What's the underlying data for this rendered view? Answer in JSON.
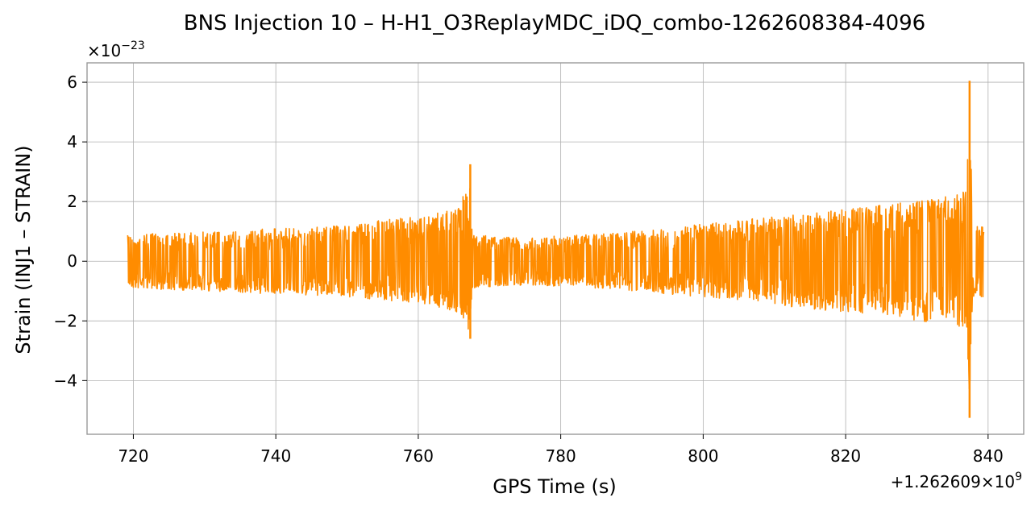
{
  "chart_data": {
    "type": "line",
    "title": "BNS Injection 10 – H-H1_O3ReplayMDC_iDQ_combo-1262608384-4096",
    "xlabel": "GPS Time (s)",
    "ylabel": "Strain (INJ1 – STRAIN)",
    "x_offset_label": "+1.262609×10^9",
    "y_scale_label": "×10^−23",
    "xlim": [
      713.5,
      845
    ],
    "ylim": [
      -5.8,
      6.65
    ],
    "x_ticks": [
      720,
      740,
      760,
      780,
      800,
      820,
      840
    ],
    "y_ticks": [
      -4,
      -2,
      0,
      2,
      4,
      6
    ],
    "x_tick_labels": [
      "720",
      "740",
      "760",
      "780",
      "800",
      "820",
      "840"
    ],
    "y_tick_labels": [
      "−4",
      "−2",
      "0",
      "2",
      "4",
      "6"
    ],
    "grid": true,
    "series": [
      {
        "color": "#ff8c00",
        "x_range": [
          719.2,
          839.4
        ],
        "envelope": [
          {
            "x": 719.2,
            "lo": -0.9,
            "hi": 0.9
          },
          {
            "x": 730,
            "lo": -1.0,
            "hi": 1.0
          },
          {
            "x": 740,
            "lo": -1.1,
            "hi": 1.1
          },
          {
            "x": 750,
            "lo": -1.2,
            "hi": 1.2
          },
          {
            "x": 755,
            "lo": -1.3,
            "hi": 1.4
          },
          {
            "x": 760,
            "lo": -1.4,
            "hi": 1.5
          },
          {
            "x": 764,
            "lo": -1.6,
            "hi": 1.7
          },
          {
            "x": 766,
            "lo": -1.8,
            "hi": 1.9
          },
          {
            "x": 767.2,
            "lo": -2.5,
            "hi": 3.2
          },
          {
            "x": 767.6,
            "lo": -0.9,
            "hi": 0.9
          },
          {
            "x": 775,
            "lo": -0.8,
            "hi": 0.8
          },
          {
            "x": 785,
            "lo": -0.9,
            "hi": 0.9
          },
          {
            "x": 795,
            "lo": -1.1,
            "hi": 1.1
          },
          {
            "x": 805,
            "lo": -1.3,
            "hi": 1.4
          },
          {
            "x": 815,
            "lo": -1.6,
            "hi": 1.6
          },
          {
            "x": 825,
            "lo": -1.8,
            "hi": 1.9
          },
          {
            "x": 830,
            "lo": -2.0,
            "hi": 2.0
          },
          {
            "x": 835,
            "lo": -2.1,
            "hi": 2.2
          },
          {
            "x": 837.0,
            "lo": -2.3,
            "hi": 2.4
          },
          {
            "x": 837.4,
            "lo": -5.25,
            "hi": 6.05
          },
          {
            "x": 837.8,
            "lo": -1.2,
            "hi": 1.2
          },
          {
            "x": 839.4,
            "lo": -1.2,
            "hi": 1.2
          }
        ],
        "spikes": [
          {
            "x": 767.3,
            "lo": -2.6,
            "hi": 3.25
          },
          {
            "x": 837.4,
            "lo": -5.25,
            "hi": 6.05
          }
        ]
      }
    ]
  }
}
